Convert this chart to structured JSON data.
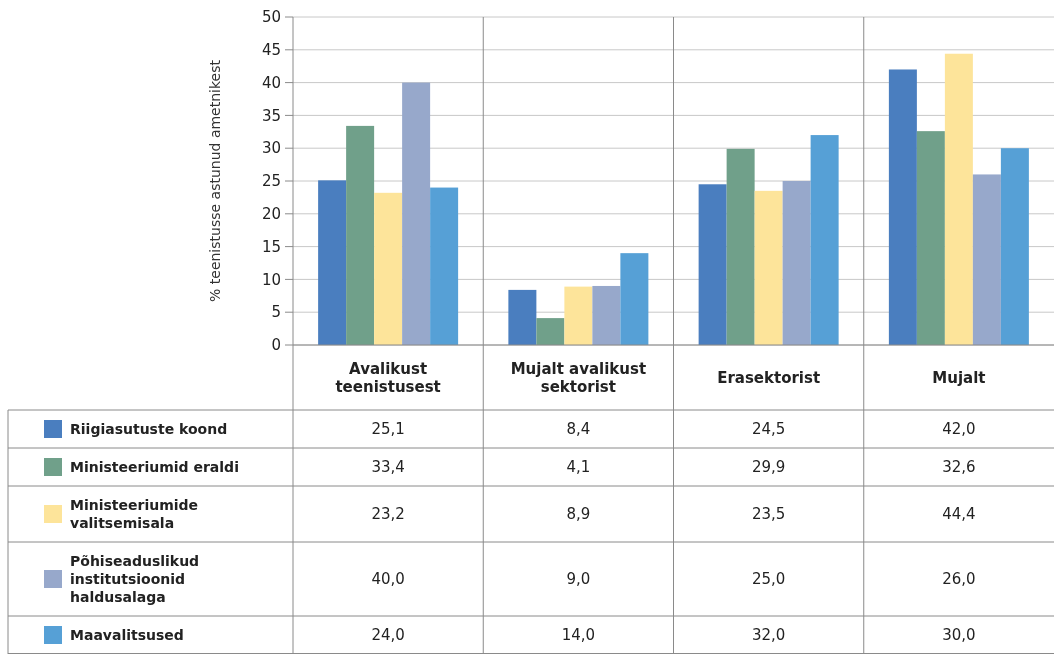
{
  "chart_data": {
    "type": "bar",
    "ylabel": "% teenistusse astunud ametnikest",
    "categories": [
      "Avalikust teenistusest",
      "Mujalt avalikust sektorist",
      "Erasektorist",
      "Mujalt"
    ],
    "series": [
      {
        "name": "Riigiasutuste koond",
        "color": "#4a7ebf",
        "values": [
          25.1,
          8.4,
          24.5,
          42.0
        ],
        "value_labels": [
          "25,1",
          "8,4",
          "24,5",
          "42,0"
        ]
      },
      {
        "name": "Ministeeriumid eraldi",
        "color": "#70a08a",
        "values": [
          33.4,
          4.1,
          29.9,
          32.6
        ],
        "value_labels": [
          "33,4",
          "4,1",
          "29,9",
          "32,6"
        ]
      },
      {
        "name": "Ministeeriumide valitsemisala",
        "color": "#fde49a",
        "values": [
          23.2,
          8.9,
          23.5,
          44.4
        ],
        "value_labels": [
          "23,2",
          "8,9",
          "23,5",
          "44,4"
        ]
      },
      {
        "name": "Põhiseaduslikud institutsioonid haldusalaga",
        "color": "#97a8cb",
        "values": [
          40.0,
          9.0,
          25.0,
          26.0
        ],
        "value_labels": [
          "40,0",
          "9,0",
          "25,0",
          "26,0"
        ]
      },
      {
        "name": "Maavalitsused",
        "color": "#56a0d6",
        "values": [
          24.0,
          14.0,
          32.0,
          30.0
        ],
        "value_labels": [
          "24,0",
          "14,0",
          "32,0",
          "30,0"
        ]
      }
    ],
    "ylim": [
      0,
      50
    ],
    "yticks": [
      0,
      5,
      10,
      15,
      20,
      25,
      30,
      35,
      40,
      45,
      50
    ],
    "grid": "y",
    "legend": "bottom left"
  }
}
